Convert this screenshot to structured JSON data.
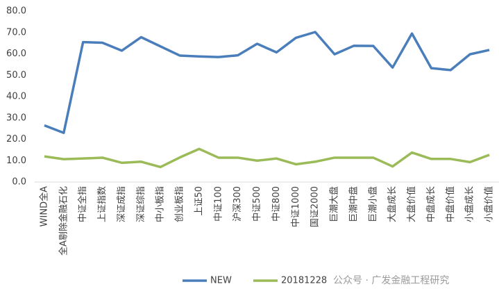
{
  "chart_data": {
    "type": "line",
    "categories": [
      "WIND全A",
      "全A剔除金融石化",
      "中证全指",
      "上证指数",
      "深证成指",
      "深证综指",
      "中小板指",
      "创业板指",
      "上证50",
      "中证100",
      "沪深300",
      "中证500",
      "中证800",
      "中证1000",
      "国证2000",
      "巨潮大盘",
      "巨潮中盘",
      "巨潮小盘",
      "大盘成长",
      "大盘价值",
      "中盘成长",
      "中盘价值",
      "小盘成长",
      "小盘价值"
    ],
    "series": [
      {
        "name": "NEW",
        "color": "#4a7ebb",
        "values": [
          26.5,
          23.0,
          65.5,
          65.2,
          61.5,
          67.8,
          63.5,
          59.2,
          58.8,
          58.5,
          59.3,
          64.7,
          60.7,
          67.5,
          70.2,
          59.8,
          63.8,
          63.7,
          53.6,
          69.5,
          53.3,
          52.4,
          59.8,
          61.8
        ]
      },
      {
        "name": "20181228",
        "color": "#9bbb59",
        "values": [
          12.0,
          10.7,
          11.0,
          11.4,
          9.0,
          9.5,
          7.0,
          11.5,
          15.5,
          11.4,
          11.4,
          10.0,
          11.0,
          8.3,
          9.5,
          11.4,
          11.4,
          11.4,
          7.3,
          13.8,
          10.8,
          10.8,
          9.3,
          12.7
        ]
      }
    ],
    "ylim": [
      0,
      80
    ],
    "yticks": [
      {
        "value": 0,
        "label": "0.0"
      },
      {
        "value": 10,
        "label": "10.0"
      },
      {
        "value": 20,
        "label": "20.0"
      },
      {
        "value": 30,
        "label": "30.0"
      },
      {
        "value": 40,
        "label": "40.0"
      },
      {
        "value": 50,
        "label": "50.0"
      },
      {
        "value": 60,
        "label": "60.0"
      },
      {
        "value": 70,
        "label": "70.0"
      },
      {
        "value": 80,
        "label": "80.0"
      }
    ],
    "grid": false,
    "legend": "bottom",
    "watermark": "公众号 · 广发金融工程研究"
  }
}
